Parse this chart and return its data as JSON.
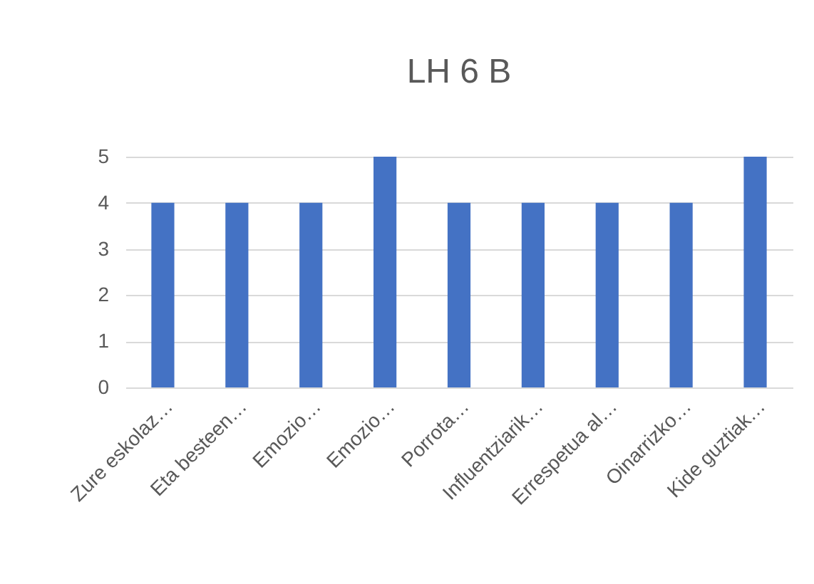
{
  "chart_data": {
    "type": "bar",
    "title": "LH 6 B",
    "categories": [
      "Zure eskolaz…",
      "Eta besteen…",
      "Emozio…",
      "Emozio…",
      "Porrota…",
      "Influentziarik…",
      "Errespetua al…",
      "Oinarrizko…",
      "Kide guztiak…"
    ],
    "values": [
      4,
      4,
      4,
      5,
      4,
      4,
      4,
      4,
      5
    ],
    "color": "#4472c4",
    "ylim": [
      0,
      5
    ],
    "yticks": [
      0,
      1,
      2,
      3,
      4,
      5
    ],
    "grid": "y"
  }
}
